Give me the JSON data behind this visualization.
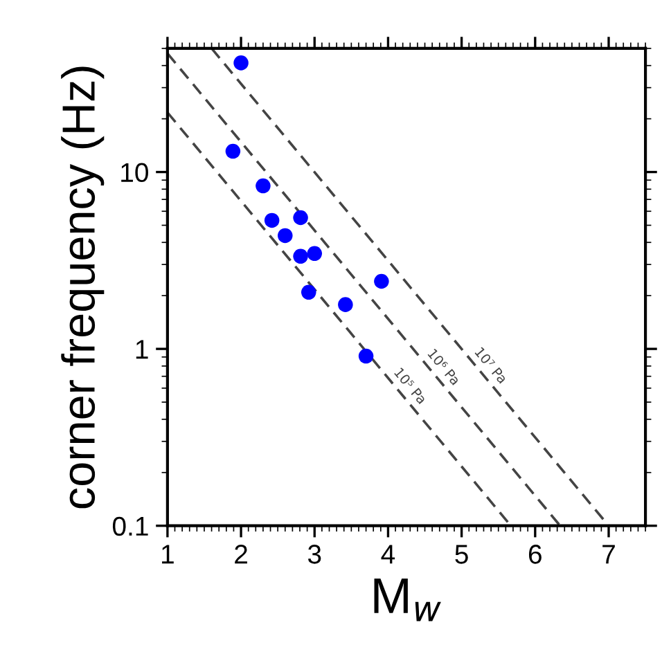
{
  "chart_data": {
    "type": "scatter",
    "xlabel": "M$_{w}$",
    "ylabel": "corner frequency (Hz)",
    "log": "y",
    "grid": false,
    "xlim": [
      1,
      7.5
    ],
    "ylim": [
      0.1,
      50
    ],
    "xticks": [
      1,
      2,
      3,
      4,
      5,
      6,
      7
    ],
    "yticks": [
      {
        "value": 0.1,
        "label": "0.1"
      },
      1,
      10
    ],
    "series": [
      {
        "color": "#0000ff",
        "marker": "circle",
        "x": [
          2.0,
          1.89,
          2.3,
          2.42,
          2.81,
          2.6,
          2.81,
          3.0,
          3.91,
          2.92,
          3.42,
          3.7
        ],
        "values": [
          41.4,
          13.1,
          8.35,
          5.33,
          5.52,
          4.37,
          3.34,
          3.46,
          2.41,
          2.09,
          1.78,
          0.91
        ]
      },
      {
        "type": "line",
        "color": "#444444",
        "marker": "none",
        "line_style": "dashed",
        "x": [
          1,
          5.67
        ],
        "values": [
          21.7,
          0.1
        ]
      },
      {
        "type": "line",
        "color": "#444444",
        "marker": "none",
        "line_style": "dashed",
        "x": [
          1,
          6.34
        ],
        "values": [
          46.8,
          0.1
        ]
      },
      {
        "type": "line",
        "color": "#444444",
        "marker": "none",
        "line_style": "dashed",
        "x": [
          1.6,
          7.0
        ],
        "values": [
          50,
          0.1
        ]
      }
    ],
    "annotations": [
      "10⁵ Pa",
      "10⁶ Pa",
      "10⁷ Pa"
    ]
  }
}
